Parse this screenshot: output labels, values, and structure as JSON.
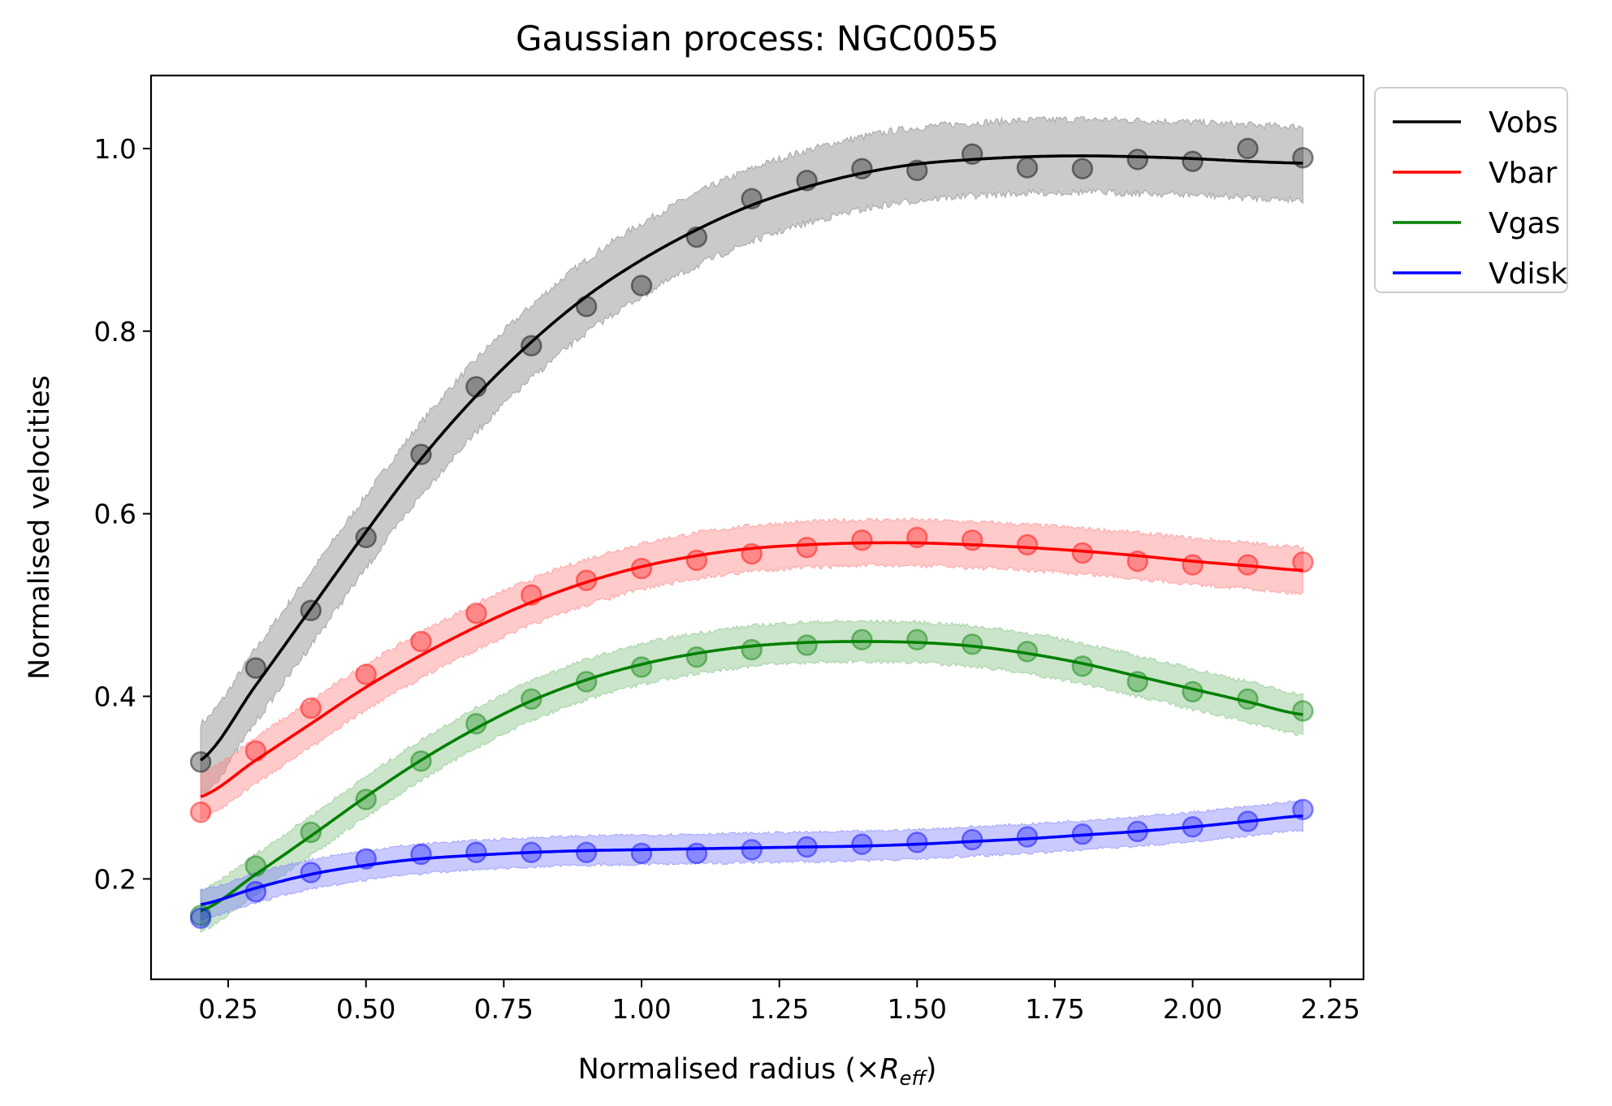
{
  "chart_data": {
    "type": "line",
    "title": "Gaussian process: NGC0055",
    "xlabel_prefix": "Normalised radius (×",
    "xlabel_var": "R",
    "xlabel_sub": "eff",
    "xlabel_suffix": ")",
    "ylabel": "Normalised velocities",
    "xlim": [
      0.11,
      2.31
    ],
    "ylim": [
      0.09,
      1.08
    ],
    "xticks": [
      0.25,
      0.5,
      0.75,
      1.0,
      1.25,
      1.5,
      1.75,
      2.0,
      2.25
    ],
    "xtick_labels": [
      "0.25",
      "0.50",
      "0.75",
      "1.00",
      "1.25",
      "1.50",
      "1.75",
      "2.00",
      "2.25"
    ],
    "yticks": [
      0.2,
      0.4,
      0.6,
      0.8,
      1.0
    ],
    "ytick_labels": [
      "0.2",
      "0.4",
      "0.6",
      "0.8",
      "1.0"
    ],
    "grid": false,
    "legend_position": "outside top-right",
    "x": [
      0.2,
      0.3,
      0.4,
      0.5,
      0.6,
      0.7,
      0.8,
      0.9,
      1.0,
      1.1,
      1.2,
      1.3,
      1.4,
      1.5,
      1.6,
      1.7,
      1.8,
      1.9,
      2.0,
      2.1,
      2.2
    ],
    "series": [
      {
        "name": "Vobs",
        "color": "#000000",
        "band_color": "#808080",
        "points": [
          0.328,
          0.431,
          0.494,
          0.574,
          0.665,
          0.739,
          0.784,
          0.827,
          0.85,
          0.903,
          0.945,
          0.965,
          0.978,
          0.976,
          0.994,
          0.979,
          0.978,
          0.988,
          0.986,
          1.0,
          0.99
        ],
        "fit": [
          0.33,
          0.412,
          0.496,
          0.58,
          0.66,
          0.729,
          0.788,
          0.838,
          0.878,
          0.911,
          0.938,
          0.958,
          0.973,
          0.983,
          0.988,
          0.991,
          0.992,
          0.991,
          0.989,
          0.986,
          0.984
        ],
        "band_half_width": 0.04
      },
      {
        "name": "Vbar",
        "color": "#ff0000",
        "band_color": "#ff8080",
        "points": [
          0.273,
          0.34,
          0.387,
          0.424,
          0.46,
          0.491,
          0.511,
          0.527,
          0.54,
          0.549,
          0.556,
          0.563,
          0.571,
          0.574,
          0.571,
          0.566,
          0.557,
          0.548,
          0.544,
          0.544,
          0.547
        ],
        "fit": [
          0.29,
          0.33,
          0.37,
          0.41,
          0.445,
          0.476,
          0.503,
          0.525,
          0.542,
          0.554,
          0.562,
          0.566,
          0.568,
          0.568,
          0.566,
          0.563,
          0.559,
          0.554,
          0.548,
          0.543,
          0.538
        ],
        "band_half_width": 0.025
      },
      {
        "name": "Vgas",
        "color": "#008000",
        "band_color": "#80c080",
        "points": [
          0.16,
          0.214,
          0.251,
          0.287,
          0.329,
          0.37,
          0.397,
          0.416,
          0.432,
          0.443,
          0.451,
          0.456,
          0.462,
          0.462,
          0.457,
          0.449,
          0.433,
          0.416,
          0.405,
          0.397,
          0.384
        ],
        "fit": [
          0.165,
          0.205,
          0.247,
          0.29,
          0.33,
          0.365,
          0.395,
          0.418,
          0.435,
          0.447,
          0.455,
          0.459,
          0.46,
          0.459,
          0.455,
          0.447,
          0.436,
          0.422,
          0.408,
          0.394,
          0.38
        ],
        "band_half_width": 0.022
      },
      {
        "name": "Vdisk",
        "color": "#0000ff",
        "band_color": "#8080ff",
        "points": [
          0.157,
          0.186,
          0.207,
          0.222,
          0.227,
          0.229,
          0.229,
          0.229,
          0.228,
          0.228,
          0.232,
          0.235,
          0.238,
          0.24,
          0.243,
          0.246,
          0.249,
          0.252,
          0.257,
          0.263,
          0.276
        ],
        "fit": [
          0.172,
          0.19,
          0.205,
          0.215,
          0.222,
          0.226,
          0.229,
          0.231,
          0.232,
          0.233,
          0.234,
          0.235,
          0.236,
          0.238,
          0.241,
          0.244,
          0.248,
          0.252,
          0.257,
          0.263,
          0.269
        ],
        "band_half_width": 0.016
      }
    ]
  }
}
